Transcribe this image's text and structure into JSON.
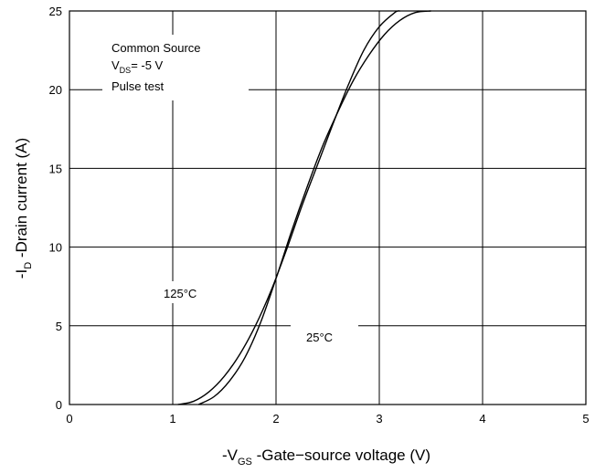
{
  "chart_data": {
    "type": "line",
    "xlabel": {
      "prefix": "-V",
      "sub": "GS",
      "rest": " -Gate−source voltage (V)"
    },
    "ylabel": {
      "prefix": "-I",
      "sub": "D",
      "rest": " -Drain current (A)"
    },
    "xlim": [
      0,
      5
    ],
    "ylim": [
      0,
      25
    ],
    "x_ticks": [
      0,
      1,
      2,
      3,
      4,
      5
    ],
    "y_ticks": [
      0,
      5,
      10,
      15,
      20,
      25
    ],
    "grid": true,
    "conditions": {
      "line1": "Common Source",
      "line2_prefix": "V",
      "line2_sub": "DS",
      "line2_rest": "= -5 V",
      "line3": "Pulse test"
    },
    "series": [
      {
        "name": "125°C",
        "x": [
          1.05,
          1.2,
          1.35,
          1.5,
          1.65,
          1.8,
          1.95,
          2.1,
          2.25,
          2.4,
          2.55,
          2.7,
          2.85,
          3.0,
          3.15,
          3.2
        ],
        "y": [
          0,
          0.2,
          0.8,
          1.8,
          3.2,
          5.0,
          7.2,
          9.8,
          12.6,
          15.2,
          17.8,
          20.3,
          22.5,
          24.0,
          24.9,
          25.0
        ]
      },
      {
        "name": "25°C",
        "x": [
          1.25,
          1.4,
          1.55,
          1.7,
          1.85,
          2.0,
          2.15,
          2.3,
          2.45,
          2.6,
          2.75,
          2.9,
          3.05,
          3.2,
          3.35,
          3.5
        ],
        "y": [
          0,
          0.5,
          1.5,
          3.0,
          5.2,
          8.0,
          11.0,
          13.8,
          16.4,
          18.6,
          20.6,
          22.2,
          23.5,
          24.4,
          24.9,
          25.0
        ]
      }
    ]
  }
}
